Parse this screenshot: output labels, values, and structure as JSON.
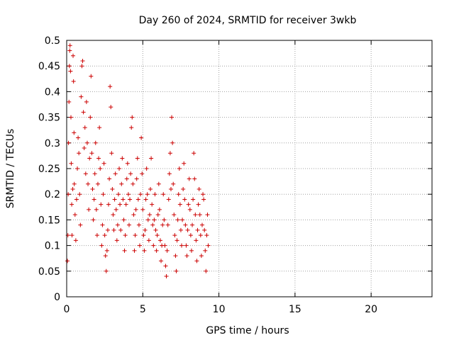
{
  "chart_data": {
    "type": "scatter",
    "title": "Day 260 of 2024, SRMTID for receiver 3wkb",
    "xlabel": "GPS time / hours",
    "ylabel": "SRMTID / TECUs",
    "xlim": [
      0,
      24
    ],
    "ylim": [
      0,
      0.5
    ],
    "xticks": [
      "0",
      "5",
      "10",
      "15",
      "20"
    ],
    "yticks": [
      "0",
      "0.05",
      "0.1",
      "0.15",
      "0.2",
      "0.25",
      "0.3",
      "0.35",
      "0.4",
      "0.45",
      "0.5"
    ],
    "grid": true,
    "marker": "+",
    "color": "#cc0000",
    "series": [
      {
        "points": [
          [
            0.05,
            0.07
          ],
          [
            0.08,
            0.12
          ],
          [
            0.1,
            0.2
          ],
          [
            0.12,
            0.3
          ],
          [
            0.15,
            0.38
          ],
          [
            0.18,
            0.45
          ],
          [
            0.2,
            0.48
          ],
          [
            0.22,
            0.49
          ],
          [
            0.25,
            0.44
          ],
          [
            0.28,
            0.35
          ],
          [
            0.3,
            0.26
          ],
          [
            0.33,
            0.18
          ],
          [
            0.35,
            0.12
          ],
          [
            0.4,
            0.21
          ],
          [
            0.42,
            0.47
          ],
          [
            0.45,
            0.42
          ],
          [
            0.48,
            0.32
          ],
          [
            0.5,
            0.22
          ],
          [
            0.55,
            0.16
          ],
          [
            0.6,
            0.11
          ],
          [
            0.65,
            0.19
          ],
          [
            0.7,
            0.25
          ],
          [
            0.75,
            0.31
          ],
          [
            0.8,
            0.28
          ],
          [
            0.85,
            0.2
          ],
          [
            0.9,
            0.14
          ],
          [
            0.95,
            0.39
          ],
          [
            1.0,
            0.45
          ],
          [
            1.05,
            0.46
          ],
          [
            1.1,
            0.36
          ],
          [
            1.15,
            0.29
          ],
          [
            1.2,
            0.33
          ],
          [
            1.25,
            0.24
          ],
          [
            1.3,
            0.38
          ],
          [
            1.35,
            0.3
          ],
          [
            1.4,
            0.22
          ],
          [
            1.45,
            0.17
          ],
          [
            1.5,
            0.27
          ],
          [
            1.55,
            0.35
          ],
          [
            1.6,
            0.43
          ],
          [
            1.65,
            0.28
          ],
          [
            1.7,
            0.21
          ],
          [
            1.75,
            0.15
          ],
          [
            1.8,
            0.19
          ],
          [
            1.85,
            0.24
          ],
          [
            1.9,
            0.3
          ],
          [
            1.95,
            0.17
          ],
          [
            2.0,
            0.12
          ],
          [
            2.05,
            0.22
          ],
          [
            2.1,
            0.27
          ],
          [
            2.15,
            0.33
          ],
          [
            2.2,
            0.25
          ],
          [
            2.25,
            0.18
          ],
          [
            2.3,
            0.1
          ],
          [
            2.35,
            0.14
          ],
          [
            2.4,
            0.2
          ],
          [
            2.45,
            0.26
          ],
          [
            2.5,
            0.12
          ],
          [
            2.55,
            0.08
          ],
          [
            2.6,
            0.05
          ],
          [
            2.65,
            0.09
          ],
          [
            2.7,
            0.13
          ],
          [
            2.75,
            0.18
          ],
          [
            2.8,
            0.23
          ],
          [
            2.85,
            0.41
          ],
          [
            2.9,
            0.37
          ],
          [
            2.95,
            0.28
          ],
          [
            3.0,
            0.21
          ],
          [
            3.05,
            0.16
          ],
          [
            3.1,
            0.13
          ],
          [
            3.15,
            0.19
          ],
          [
            3.2,
            0.24
          ],
          [
            3.25,
            0.17
          ],
          [
            3.3,
            0.11
          ],
          [
            3.35,
            0.14
          ],
          [
            3.4,
            0.2
          ],
          [
            3.45,
            0.25
          ],
          [
            3.5,
            0.18
          ],
          [
            3.55,
            0.13
          ],
          [
            3.6,
            0.22
          ],
          [
            3.65,
            0.27
          ],
          [
            3.7,
            0.19
          ],
          [
            3.75,
            0.15
          ],
          [
            3.8,
            0.09
          ],
          [
            3.85,
            0.12
          ],
          [
            3.9,
            0.18
          ],
          [
            3.95,
            0.23
          ],
          [
            4.0,
            0.26
          ],
          [
            4.05,
            0.2
          ],
          [
            4.1,
            0.14
          ],
          [
            4.15,
            0.19
          ],
          [
            4.2,
            0.24
          ],
          [
            4.25,
            0.33
          ],
          [
            4.3,
            0.35
          ],
          [
            4.35,
            0.22
          ],
          [
            4.4,
            0.16
          ],
          [
            4.45,
            0.09
          ],
          [
            4.5,
            0.12
          ],
          [
            4.55,
            0.17
          ],
          [
            4.6,
            0.23
          ],
          [
            4.65,
            0.27
          ],
          [
            4.7,
            0.19
          ],
          [
            4.75,
            0.14
          ],
          [
            4.8,
            0.1
          ],
          [
            4.85,
            0.2
          ],
          [
            4.9,
            0.31
          ],
          [
            4.95,
            0.24
          ],
          [
            5.0,
            0.17
          ],
          [
            5.05,
            0.12
          ],
          [
            5.1,
            0.09
          ],
          [
            5.15,
            0.13
          ],
          [
            5.2,
            0.19
          ],
          [
            5.25,
            0.25
          ],
          [
            5.3,
            0.2
          ],
          [
            5.35,
            0.15
          ],
          [
            5.4,
            0.11
          ],
          [
            5.45,
            0.16
          ],
          [
            5.5,
            0.21
          ],
          [
            5.55,
            0.27
          ],
          [
            5.6,
            0.18
          ],
          [
            5.65,
            0.14
          ],
          [
            5.7,
            0.1
          ],
          [
            5.75,
            0.15
          ],
          [
            5.8,
            0.2
          ],
          [
            5.85,
            0.13
          ],
          [
            5.9,
            0.09
          ],
          [
            5.95,
            0.12
          ],
          [
            6.0,
            0.16
          ],
          [
            6.05,
            0.22
          ],
          [
            6.1,
            0.17
          ],
          [
            6.15,
            0.11
          ],
          [
            6.2,
            0.07
          ],
          [
            6.25,
            0.1
          ],
          [
            6.3,
            0.14
          ],
          [
            6.35,
            0.2
          ],
          [
            6.4,
            0.15
          ],
          [
            6.45,
            0.1
          ],
          [
            6.5,
            0.06
          ],
          [
            6.55,
            0.04
          ],
          [
            6.6,
            0.09
          ],
          [
            6.65,
            0.14
          ],
          [
            6.7,
            0.19
          ],
          [
            6.75,
            0.24
          ],
          [
            6.8,
            0.28
          ],
          [
            6.85,
            0.21
          ],
          [
            6.9,
            0.35
          ],
          [
            6.95,
            0.3
          ],
          [
            7.0,
            0.22
          ],
          [
            7.05,
            0.16
          ],
          [
            7.1,
            0.12
          ],
          [
            7.15,
            0.08
          ],
          [
            7.2,
            0.05
          ],
          [
            7.25,
            0.11
          ],
          [
            7.3,
            0.15
          ],
          [
            7.35,
            0.2
          ],
          [
            7.4,
            0.25
          ],
          [
            7.45,
            0.18
          ],
          [
            7.5,
            0.13
          ],
          [
            7.55,
            0.1
          ],
          [
            7.6,
            0.15
          ],
          [
            7.65,
            0.21
          ],
          [
            7.7,
            0.26
          ],
          [
            7.75,
            0.19
          ],
          [
            7.8,
            0.14
          ],
          [
            7.85,
            0.1
          ],
          [
            7.9,
            0.08
          ],
          [
            7.95,
            0.13
          ],
          [
            8.0,
            0.18
          ],
          [
            8.05,
            0.23
          ],
          [
            8.1,
            0.17
          ],
          [
            8.15,
            0.12
          ],
          [
            8.2,
            0.09
          ],
          [
            8.25,
            0.14
          ],
          [
            8.3,
            0.19
          ],
          [
            8.35,
            0.28
          ],
          [
            8.4,
            0.23
          ],
          [
            8.45,
            0.16
          ],
          [
            8.5,
            0.11
          ],
          [
            8.55,
            0.07
          ],
          [
            8.6,
            0.13
          ],
          [
            8.65,
            0.18
          ],
          [
            8.7,
            0.21
          ],
          [
            8.75,
            0.16
          ],
          [
            8.8,
            0.12
          ],
          [
            8.85,
            0.08
          ],
          [
            8.9,
            0.14
          ],
          [
            8.95,
            0.2
          ],
          [
            9.0,
            0.19
          ],
          [
            9.05,
            0.13
          ],
          [
            9.1,
            0.09
          ],
          [
            9.15,
            0.05
          ],
          [
            9.2,
            0.12
          ],
          [
            9.25,
            0.16
          ],
          [
            9.3,
            0.1
          ]
        ]
      }
    ]
  }
}
